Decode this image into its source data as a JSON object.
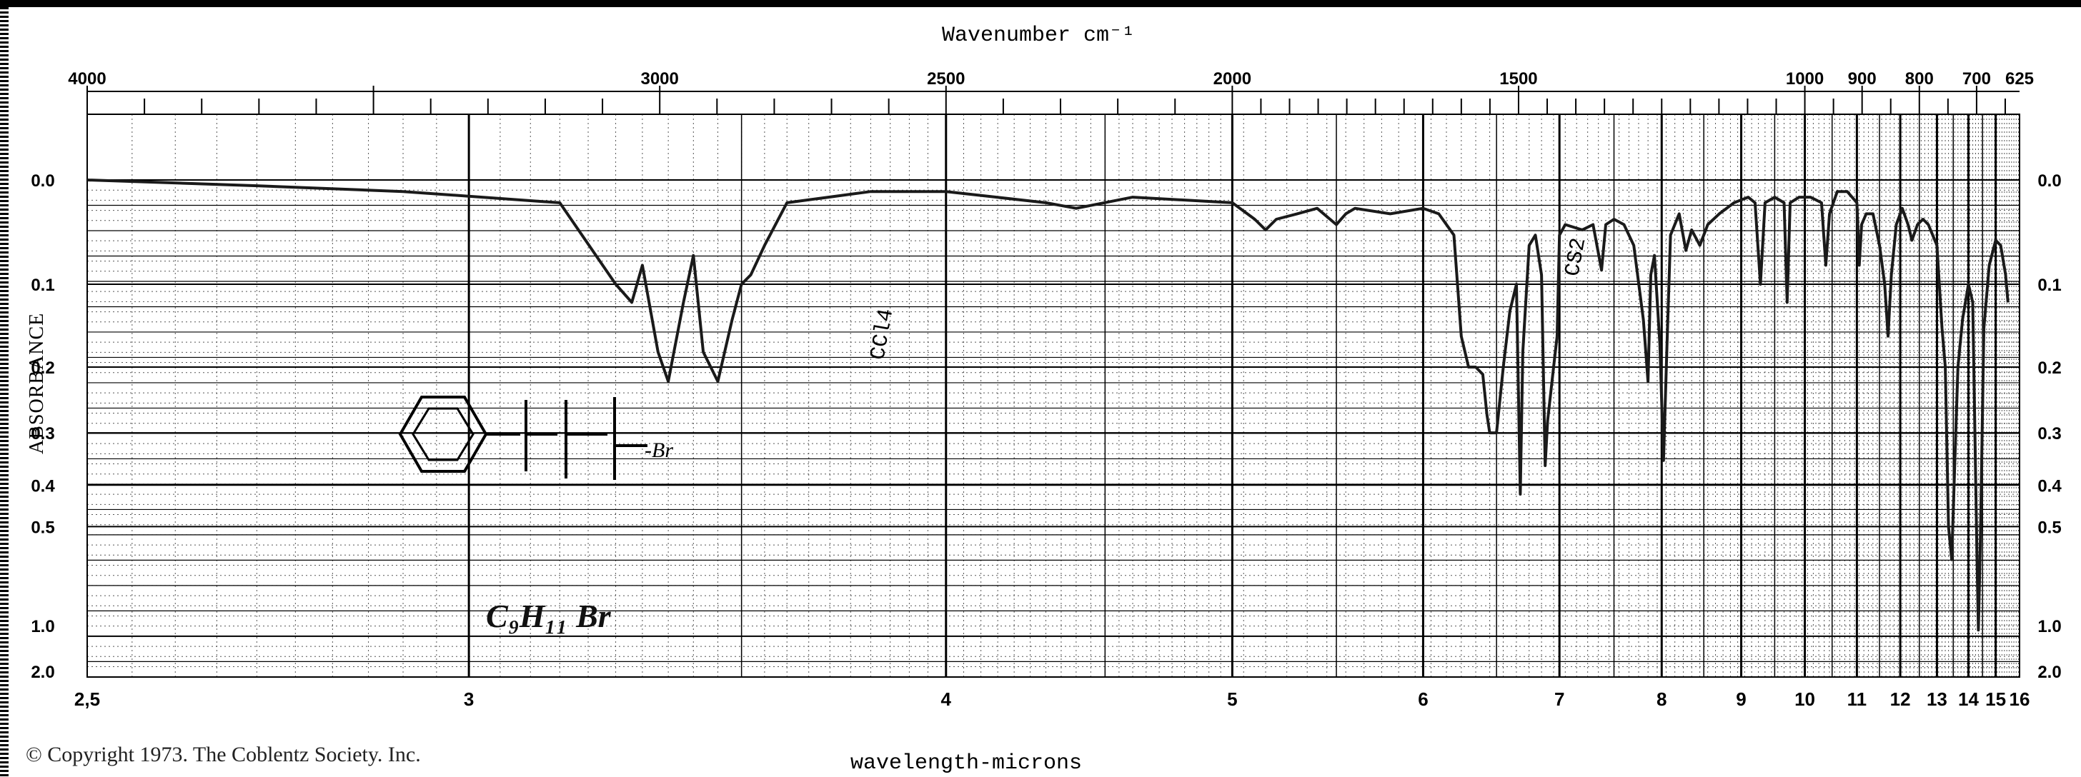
{
  "chart_data": {
    "type": "line",
    "title": "",
    "top_axis_label": "Wavenumber cm⁻¹",
    "xlabel": "wavelength-microns",
    "ylabel": "ABSORBANCE",
    "top_ticks": [
      "4000",
      "3000",
      "2500",
      "2000",
      "1500",
      "1000",
      "900",
      "800",
      "700",
      "625"
    ],
    "bottom_ticks": [
      "2,5",
      "3",
      "4",
      "5",
      "6",
      "7",
      "8",
      "9",
      "10",
      "11",
      "12",
      "13",
      "14",
      "15",
      "16"
    ],
    "y_ticks": [
      "0.0",
      "0.1",
      "0.2",
      "0.3",
      "0.4",
      "0.5",
      "1.0",
      "2.0"
    ],
    "xlim_microns": [
      2.5,
      16
    ],
    "x_scale": "linear in wavenumber (reciprocal microns)",
    "grid": true,
    "annotations": [
      "CCl4",
      "CS2"
    ],
    "series": [
      {
        "x": [
          2.5,
          2.7,
          2.9,
          3.15,
          3.25,
          3.28,
          3.3,
          3.33,
          3.35,
          3.38,
          3.4,
          3.42,
          3.45,
          3.48,
          3.5,
          3.52,
          3.55,
          3.6,
          3.8,
          4.0,
          4.3,
          4.4,
          4.6,
          5.0,
          5.1,
          5.15,
          5.2,
          5.3,
          5.4,
          5.5,
          5.55,
          5.6,
          5.8,
          6.0,
          6.1,
          6.2,
          6.25,
          6.3,
          6.35,
          6.4,
          6.43,
          6.45,
          6.5,
          6.55,
          6.6,
          6.65,
          6.68,
          6.7,
          6.75,
          6.8,
          6.85,
          6.88,
          6.9,
          6.95,
          6.98,
          7.0,
          7.05,
          7.2,
          7.3,
          7.38,
          7.42,
          7.5,
          7.6,
          7.7,
          7.8,
          7.85,
          7.88,
          7.92,
          7.98,
          8.02,
          8.06,
          8.1,
          8.2,
          8.28,
          8.35,
          8.45,
          8.55,
          8.7,
          8.9,
          9.1,
          9.2,
          9.28,
          9.35,
          9.5,
          9.65,
          9.7,
          9.75,
          9.9,
          10.1,
          10.3,
          10.38,
          10.45,
          10.6,
          10.8,
          11.0,
          11.05,
          11.1,
          11.2,
          11.35,
          11.5,
          11.62,
          11.7,
          11.78,
          11.9,
          12.05,
          12.2,
          12.3,
          12.45,
          12.6,
          12.75,
          13.0,
          13.15,
          13.25,
          13.35,
          13.45,
          13.55,
          13.65,
          13.8,
          14.0,
          14.15,
          14.3,
          14.35,
          14.42,
          14.55,
          14.75,
          15.0,
          15.2,
          15.4,
          15.5
        ],
        "y": [
          0.0,
          0.005,
          0.01,
          0.02,
          0.1,
          0.12,
          0.08,
          0.18,
          0.22,
          0.12,
          0.07,
          0.18,
          0.22,
          0.14,
          0.1,
          0.09,
          0.06,
          0.02,
          0.01,
          0.01,
          0.02,
          0.025,
          0.015,
          0.02,
          0.035,
          0.045,
          0.035,
          0.03,
          0.025,
          0.04,
          0.03,
          0.025,
          0.03,
          0.025,
          0.03,
          0.05,
          0.16,
          0.2,
          0.2,
          0.21,
          0.27,
          0.3,
          0.3,
          0.2,
          0.13,
          0.1,
          0.42,
          0.18,
          0.06,
          0.05,
          0.09,
          0.36,
          0.28,
          0.2,
          0.16,
          0.05,
          0.04,
          0.045,
          0.04,
          0.085,
          0.04,
          0.035,
          0.04,
          0.06,
          0.14,
          0.22,
          0.09,
          0.07,
          0.17,
          0.35,
          0.17,
          0.05,
          0.03,
          0.065,
          0.045,
          0.06,
          0.04,
          0.03,
          0.02,
          0.015,
          0.02,
          0.1,
          0.02,
          0.015,
          0.02,
          0.12,
          0.02,
          0.015,
          0.015,
          0.02,
          0.08,
          0.03,
          0.01,
          0.01,
          0.02,
          0.08,
          0.04,
          0.03,
          0.03,
          0.06,
          0.1,
          0.16,
          0.09,
          0.04,
          0.025,
          0.04,
          0.055,
          0.04,
          0.035,
          0.04,
          0.06,
          0.15,
          0.2,
          0.5,
          0.6,
          0.35,
          0.2,
          0.14,
          0.1,
          0.12,
          0.6,
          0.95,
          0.55,
          0.15,
          0.08,
          0.055,
          0.06,
          0.09,
          0.12
        ]
      }
    ]
  }
}
